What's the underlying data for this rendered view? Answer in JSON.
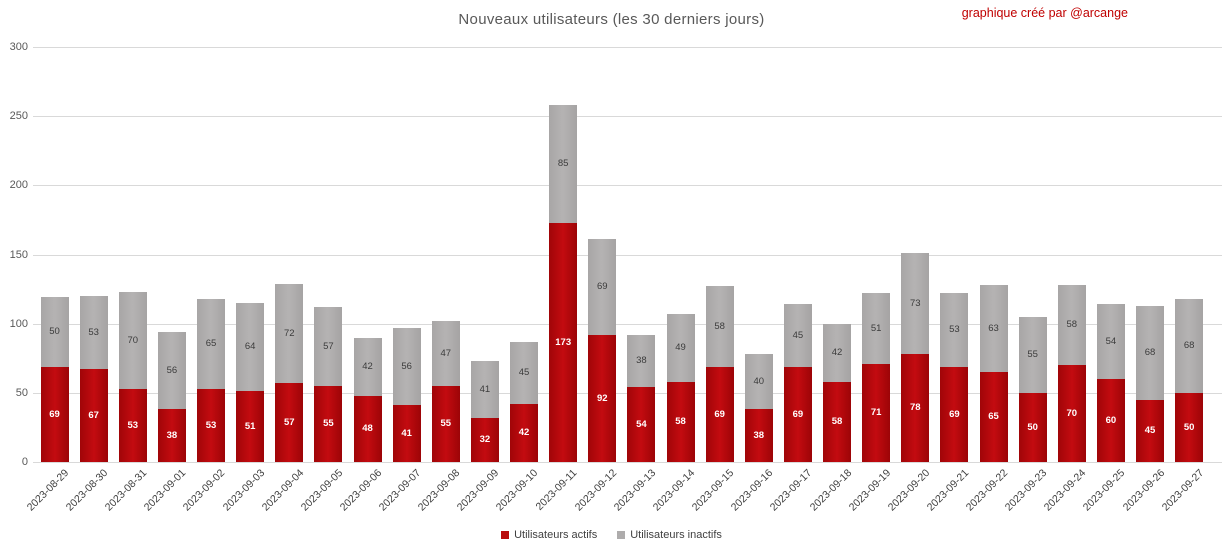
{
  "title": "Nouveaux utilisateurs (les 30 derniers jours)",
  "credit": "graphique créé par @arcange",
  "colors": {
    "active": "#b90d0d",
    "inactive": "#aeacac",
    "credit": "#c00000",
    "title": "#595959",
    "gridline": "#d9d9d9"
  },
  "legend": {
    "active_label": "Utilisateurs actifs",
    "inactive_label": "Utilisateurs inactifs"
  },
  "chart_data": {
    "type": "bar",
    "stacked": true,
    "title": "Nouveaux utilisateurs (les 30 derniers jours)",
    "xlabel": "",
    "ylabel": "",
    "ylim": [
      0,
      300
    ],
    "yticks": [
      0,
      50,
      100,
      150,
      200,
      250,
      300
    ],
    "grid": true,
    "legend_position": "bottom",
    "categories": [
      "2023-08-29",
      "2023-08-30",
      "2023-08-31",
      "2023-09-01",
      "2023-09-02",
      "2023-09-03",
      "2023-09-04",
      "2023-09-05",
      "2023-09-06",
      "2023-09-07",
      "2023-09-08",
      "2023-09-09",
      "2023-09-10",
      "2023-09-11",
      "2023-09-12",
      "2023-09-13",
      "2023-09-14",
      "2023-09-15",
      "2023-09-16",
      "2023-09-17",
      "2023-09-18",
      "2023-09-19",
      "2023-09-20",
      "2023-09-21",
      "2023-09-22",
      "2023-09-23",
      "2023-09-24",
      "2023-09-25",
      "2023-09-26",
      "2023-09-27"
    ],
    "series": [
      {
        "name": "Utilisateurs actifs",
        "color": "#b90d0d",
        "values": [
          69,
          67,
          53,
          38,
          53,
          51,
          57,
          55,
          48,
          41,
          55,
          32,
          42,
          173,
          92,
          54,
          58,
          69,
          38,
          69,
          58,
          71,
          78,
          69,
          65,
          50,
          70,
          60,
          45,
          50
        ]
      },
      {
        "name": "Utilisateurs inactifs",
        "color": "#aeacac",
        "values": [
          50,
          53,
          70,
          56,
          65,
          64,
          72,
          57,
          42,
          56,
          47,
          41,
          45,
          85,
          69,
          38,
          49,
          58,
          40,
          45,
          42,
          51,
          73,
          53,
          63,
          55,
          58,
          54,
          68,
          68
        ]
      }
    ]
  }
}
